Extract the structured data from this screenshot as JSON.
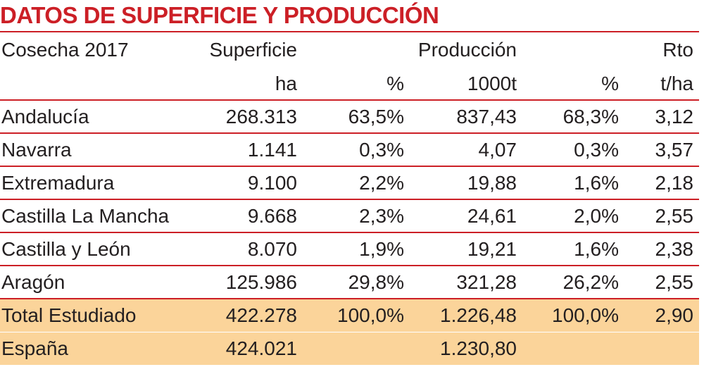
{
  "title": "DATOS DE SUPERFICIE Y PRODUCCIÓN",
  "header": {
    "row1": [
      "Cosecha 2017",
      "Superficie",
      "",
      "Producción",
      "",
      "Rto"
    ],
    "row2": [
      "",
      "ha",
      "%",
      "1000t",
      "%",
      "t/ha"
    ]
  },
  "rows": [
    [
      "Andalucía",
      "268.313",
      "63,5%",
      "837,43",
      "68,3%",
      "3,12"
    ],
    [
      "Navarra",
      "1.141",
      "0,3%",
      "4,07",
      "0,3%",
      "3,57"
    ],
    [
      "Extremadura",
      "9.100",
      "2,2%",
      "19,88",
      "1,6%",
      "2,18"
    ],
    [
      "Castilla La Mancha",
      "9.668",
      "2,3%",
      "24,61",
      "2,0%",
      "2,55"
    ],
    [
      "Castilla y León",
      "8.070",
      "1,9%",
      "19,21",
      "1,6%",
      "2,38"
    ],
    [
      "Aragón",
      "125.986",
      "29,8%",
      "321,28",
      "26,2%",
      "2,55"
    ]
  ],
  "total": [
    "Total Estudiado",
    "422.278",
    "100,0%",
    "1.226,48",
    "100,0%",
    "2,90"
  ],
  "spain": [
    "España",
    "424.021",
    "",
    "1.230,80",
    "",
    ""
  ],
  "colors": {
    "accent": "#cc1f26",
    "highlight": "#fbd49a",
    "text": "#231f20"
  }
}
